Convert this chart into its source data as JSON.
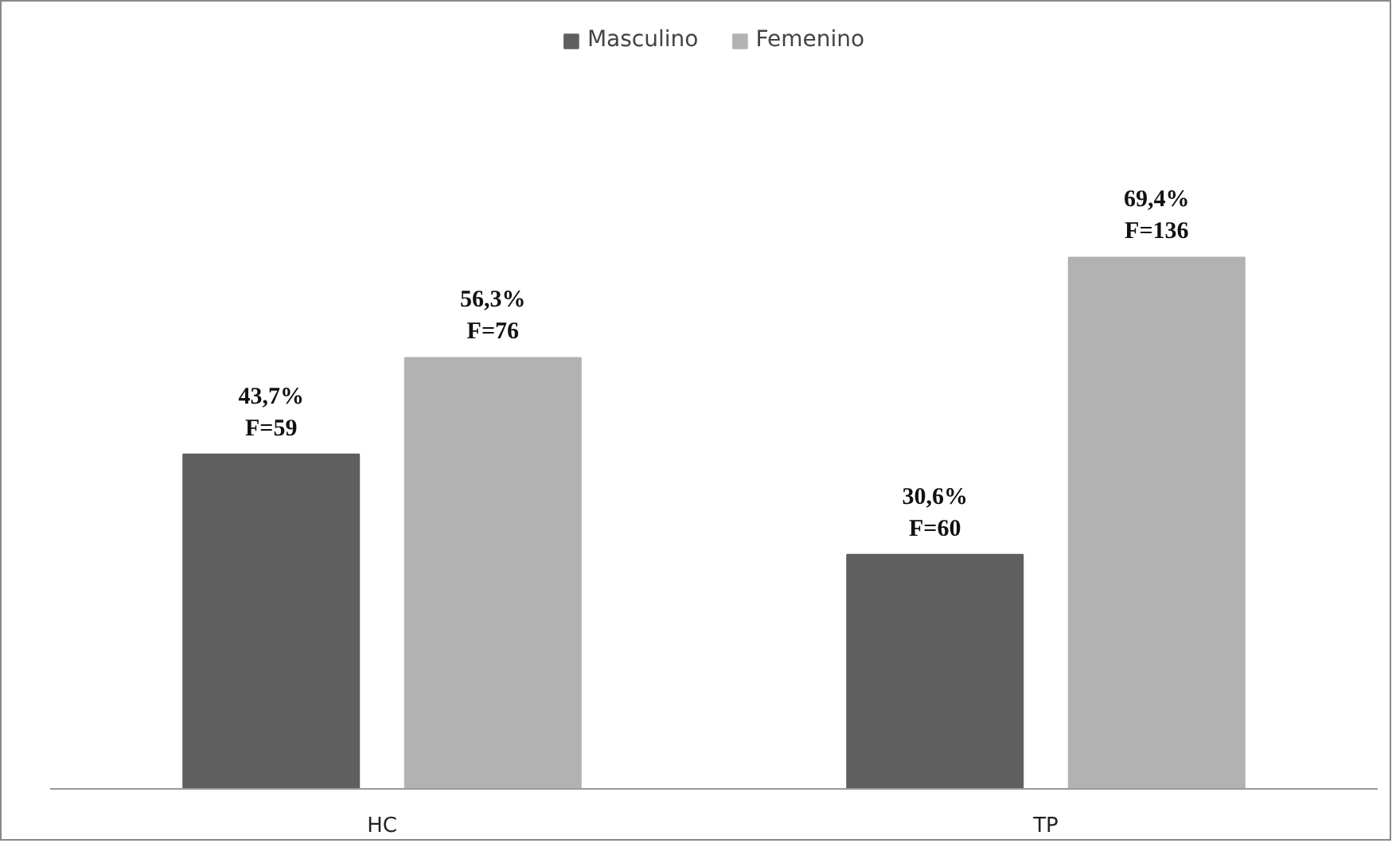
{
  "chart_data": {
    "type": "bar",
    "categories": [
      "HC",
      "TP"
    ],
    "series": [
      {
        "name": "Masculino",
        "color": "#5f5f5f",
        "values": [
          43.7,
          30.6
        ],
        "value_labels": [
          "43,7%\nF=59",
          "30,6%\nF=60"
        ]
      },
      {
        "name": "Femenino",
        "color": "#b2b2b2",
        "values": [
          56.3,
          69.4
        ],
        "value_labels": [
          "56,3%\nF=76",
          "69,4%\nF=136"
        ]
      }
    ],
    "legend": "top"
  }
}
